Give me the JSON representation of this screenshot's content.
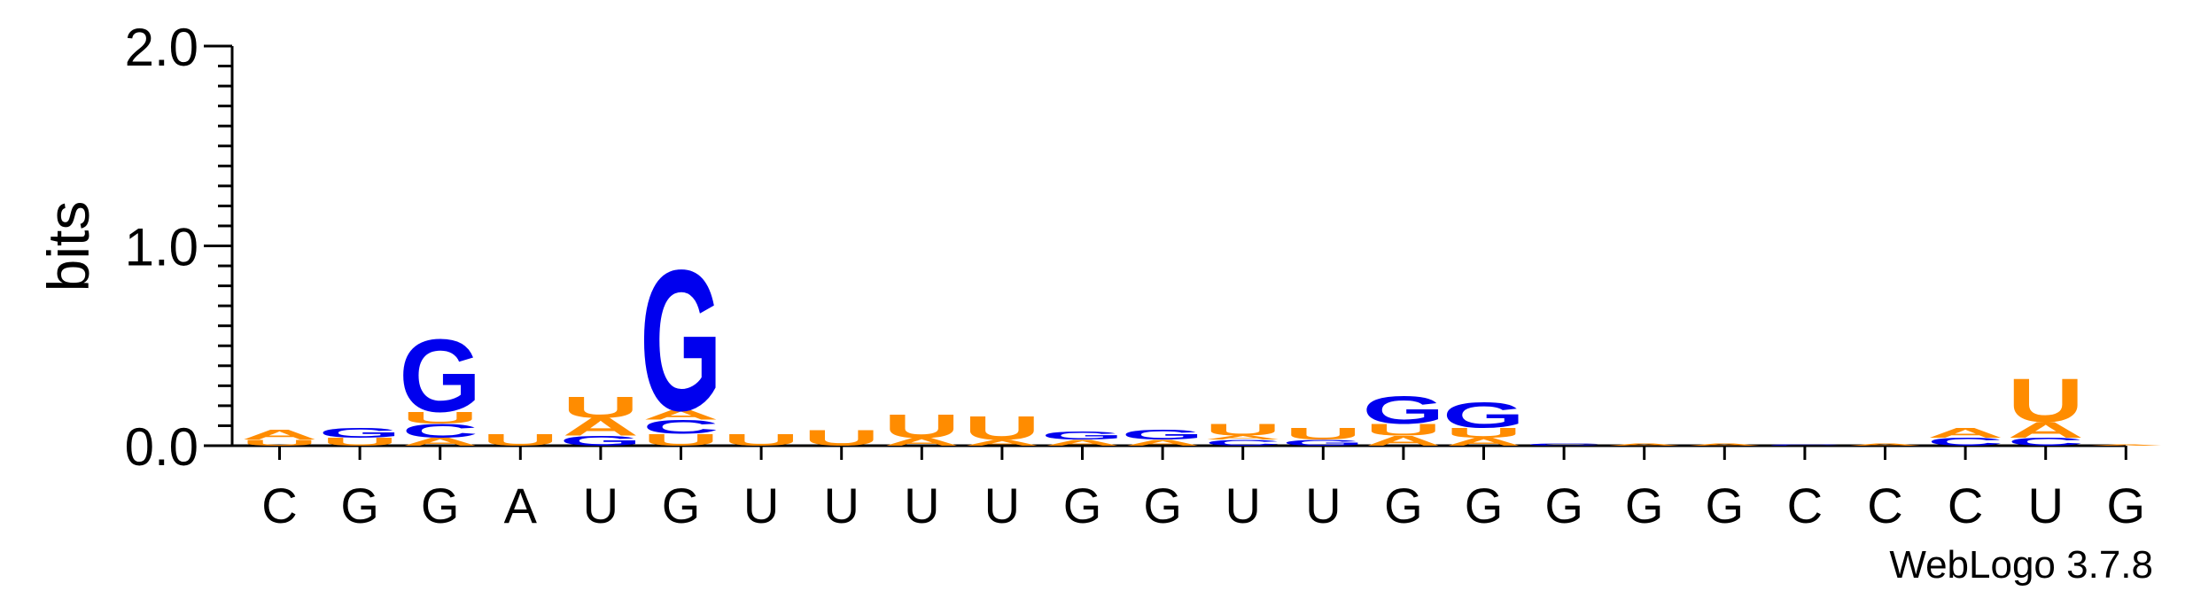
{
  "chart_data": {
    "type": "sequence-logo",
    "ylabel": "bits",
    "ylim": [
      0,
      2.0
    ],
    "y_ticks": [
      "0.0",
      "1.0",
      "2.0"
    ],
    "y_tick_values": [
      0,
      1.0,
      2.0
    ],
    "x_labels": [
      "C",
      "G",
      "G",
      "A",
      "U",
      "G",
      "U",
      "U",
      "U",
      "U",
      "G",
      "G",
      "U",
      "U",
      "G",
      "G",
      "G",
      "G",
      "G",
      "C",
      "C",
      "C",
      "U",
      "G"
    ],
    "footer": "WebLogo 3.7.8",
    "colors": {
      "A": "#ff8c00",
      "U": "#ff8c00",
      "G": "#0000ee",
      "C": "#0000ee"
    },
    "positions": [
      [
        {
          "l": "U",
          "h": 0.03
        },
        {
          "l": "A",
          "h": 0.05
        }
      ],
      [
        {
          "l": "U",
          "h": 0.04
        },
        {
          "l": "G",
          "h": 0.05
        }
      ],
      [
        {
          "l": "A",
          "h": 0.04
        },
        {
          "l": "C",
          "h": 0.07
        },
        {
          "l": "U",
          "h": 0.06
        },
        {
          "l": "G",
          "h": 0.37
        }
      ],
      [
        {
          "l": "U",
          "h": 0.06
        }
      ],
      [
        {
          "l": "G",
          "h": 0.05
        },
        {
          "l": "A",
          "h": 0.09
        },
        {
          "l": "U",
          "h": 0.11
        }
      ],
      [
        {
          "l": "U",
          "h": 0.06
        },
        {
          "l": "C",
          "h": 0.07
        },
        {
          "l": "A",
          "h": 0.05
        },
        {
          "l": "G",
          "h": 0.72
        }
      ],
      [
        {
          "l": "U",
          "h": 0.06
        }
      ],
      [
        {
          "l": "U",
          "h": 0.08
        }
      ],
      [
        {
          "l": "A",
          "h": 0.04
        },
        {
          "l": "U",
          "h": 0.12
        }
      ],
      [
        {
          "l": "A",
          "h": 0.03
        },
        {
          "l": "U",
          "h": 0.12
        }
      ],
      [
        {
          "l": "A",
          "h": 0.03
        },
        {
          "l": "G",
          "h": 0.04
        }
      ],
      [
        {
          "l": "A",
          "h": 0.03
        },
        {
          "l": "G",
          "h": 0.05
        }
      ],
      [
        {
          "l": "C",
          "h": 0.03
        },
        {
          "l": "A",
          "h": 0.02
        },
        {
          "l": "U",
          "h": 0.06
        }
      ],
      [
        {
          "l": "G",
          "h": 0.03
        },
        {
          "l": "U",
          "h": 0.06
        }
      ],
      [
        {
          "l": "A",
          "h": 0.05
        },
        {
          "l": "U",
          "h": 0.06
        },
        {
          "l": "G",
          "h": 0.14
        }
      ],
      [
        {
          "l": "A",
          "h": 0.04
        },
        {
          "l": "U",
          "h": 0.05
        },
        {
          "l": "G",
          "h": 0.13
        }
      ],
      [
        {
          "l": "C",
          "h": 0.01
        }
      ],
      [
        {
          "l": "A",
          "h": 0.01
        }
      ],
      [
        {
          "l": "A",
          "h": 0.01
        }
      ],
      [
        {
          "l": "C",
          "h": 0.005
        }
      ],
      [
        {
          "l": "A",
          "h": 0.01
        }
      ],
      [
        {
          "l": "C",
          "h": 0.04
        },
        {
          "l": "A",
          "h": 0.05
        }
      ],
      [
        {
          "l": "C",
          "h": 0.04
        },
        {
          "l": "A",
          "h": 0.08
        },
        {
          "l": "U",
          "h": 0.22
        }
      ],
      [
        {
          "l": "A",
          "h": 0.005
        }
      ]
    ]
  }
}
